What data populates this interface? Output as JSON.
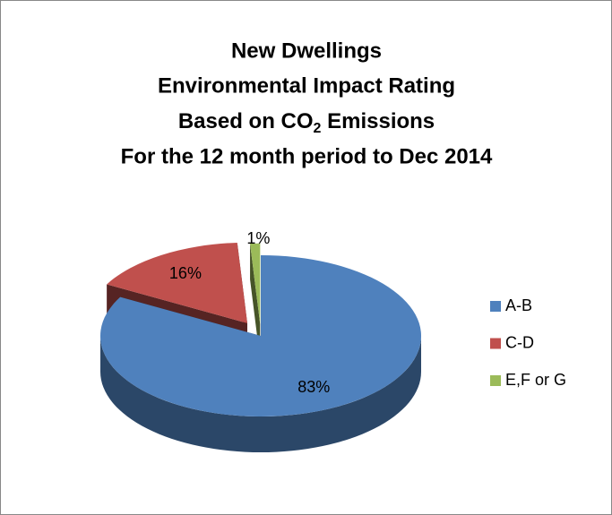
{
  "chart_data": {
    "type": "pie3d",
    "title": [
      "New Dwellings",
      "Environmental Impact Rating",
      [
        "Based on CO",
        "2",
        " Emissions"
      ],
      "For the 12 month period to Dec 2014"
    ],
    "categories": [
      "A-B",
      "C-D",
      "E,F or G"
    ],
    "values": [
      83,
      16,
      1
    ],
    "value_labels": [
      "83%",
      "16%",
      "1%"
    ],
    "colors": [
      "#4f81bd",
      "#c0504d",
      "#9bbb59"
    ],
    "legend": "right"
  }
}
